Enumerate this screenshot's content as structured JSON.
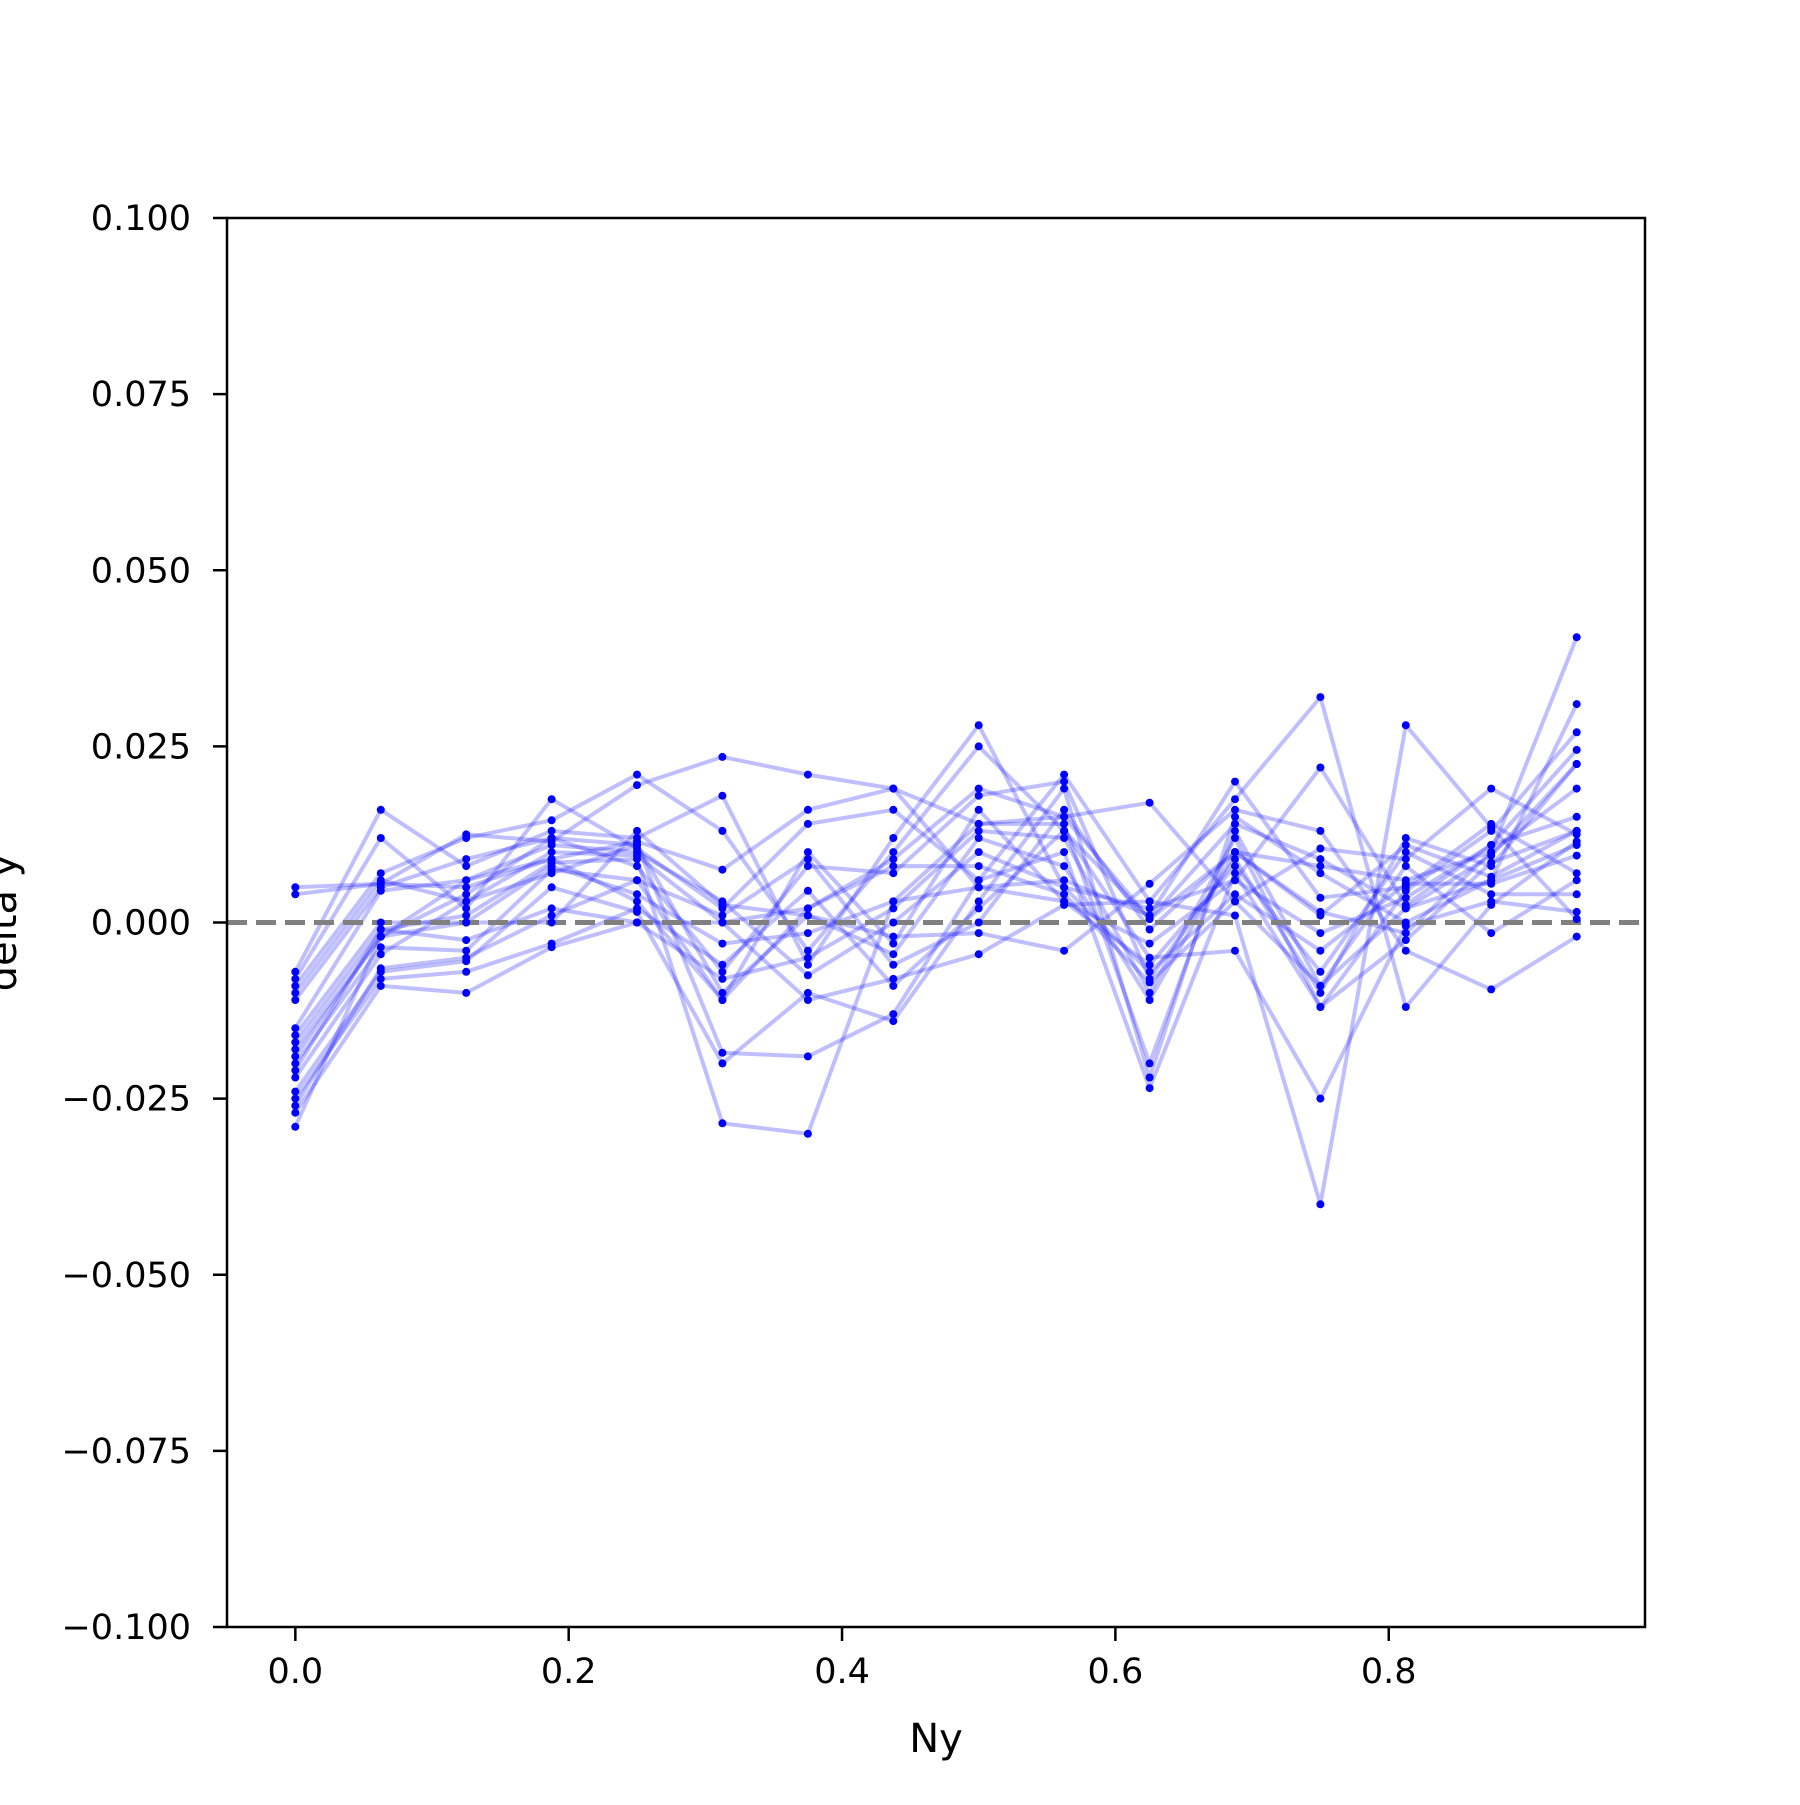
{
  "chart_data": {
    "type": "line",
    "title": "",
    "xlabel": "Ny",
    "ylabel": "delta y",
    "xlim": [
      -0.05,
      0.9875
    ],
    "ylim": [
      -0.1,
      0.1
    ],
    "xticks": [
      "0.0",
      "0.2",
      "0.4",
      "0.6",
      "0.8"
    ],
    "xtick_values": [
      0.0,
      0.2,
      0.4,
      0.6,
      0.8
    ],
    "yticks": [
      "0.100",
      "0.075",
      "0.050",
      "0.025",
      "0.000",
      "−0.025",
      "−0.050",
      "−0.075",
      "−0.100"
    ],
    "ytick_values": [
      0.1,
      0.075,
      0.05,
      0.025,
      0.0,
      -0.025,
      -0.05,
      -0.075,
      -0.1
    ],
    "reference_line": {
      "y": 0.0,
      "style": "dashed",
      "color": "#808080"
    },
    "grid": false,
    "line_color": "#0000ff",
    "line_alpha": 0.25,
    "marker_color": "#0000ff",
    "x": [
      0.0,
      0.0625,
      0.125,
      0.1875,
      0.25,
      0.3125,
      0.375,
      0.4375,
      0.5,
      0.5625,
      0.625,
      0.6875,
      0.75,
      0.8125,
      0.875,
      0.9375
    ],
    "series": [
      {
        "values": [
          0.005,
          0.0055,
          0.0125,
          0.0115,
          0.0195,
          0.0235,
          0.021,
          0.019,
          0.014,
          0.015,
          0.017,
          0.003,
          0.0105,
          0.009,
          0.019,
          0.0125
        ]
      },
      {
        "values": [
          0.004,
          0.0055,
          0.005,
          0.009,
          0.0115,
          0.0075,
          0.016,
          0.019,
          0.005,
          0.006,
          0.001,
          0.02,
          0.0035,
          0.005,
          0.014,
          0.007
        ]
      },
      {
        "values": [
          -0.007,
          0.016,
          0.008,
          0.013,
          0.012,
          0.018,
          -0.006,
          0.012,
          0.028,
          0.005,
          0.002,
          0.006,
          0.022,
          0.0025,
          0.011,
          0.015
        ]
      },
      {
        "values": [
          -0.008,
          0.012,
          0.002,
          0.0175,
          0.0105,
          0.002,
          0.014,
          0.016,
          0.006,
          0.021,
          0.003,
          0.0175,
          0.032,
          -0.012,
          0.0025,
          0.0115
        ]
      },
      {
        "values": [
          -0.009,
          0.007,
          0.012,
          0.0145,
          0.021,
          0.013,
          -0.004,
          0.01,
          0.025,
          0.013,
          0.0005,
          0.014,
          0.009,
          0.002,
          0.006,
          0.011
        ]
      },
      {
        "values": [
          -0.01,
          0.006,
          0.003,
          0.01,
          0.0095,
          0.0,
          0.002,
          0.009,
          0.019,
          0.015,
          0.0005,
          0.01,
          0.008,
          0.006,
          0.01,
          0.019
        ]
      },
      {
        "values": [
          -0.011,
          0.005,
          0.009,
          0.012,
          0.008,
          -0.007,
          0.008,
          0.007,
          0.018,
          0.02,
          -0.008,
          0.009,
          -0.01,
          0.012,
          0.008,
          0.0225
        ]
      },
      {
        "values": [
          -0.015,
          0.0045,
          0.006,
          0.009,
          0.003,
          -0.011,
          0.01,
          -0.003,
          0.016,
          0.003,
          -0.006,
          0.008,
          -0.007,
          0.01,
          0.004,
          0.004
        ]
      },
      {
        "values": [
          -0.016,
          0.0,
          0.0,
          0.008,
          0.004,
          -0.003,
          -0.0015,
          0.003,
          0.014,
          0.014,
          -0.02,
          0.013,
          -0.009,
          0.008,
          -0.0015,
          0.006
        ]
      },
      {
        "values": [
          -0.017,
          -0.001,
          -0.0025,
          0.002,
          0.0,
          -0.008,
          -0.005,
          0.002,
          0.013,
          0.012,
          -0.01,
          0.012,
          -0.012,
          0.0045,
          0.013,
          0.027
        ]
      },
      {
        "values": [
          -0.018,
          -0.002,
          0.004,
          0.012,
          0.011,
          -0.01,
          0.001,
          -0.0045,
          0.012,
          0.008,
          -0.011,
          0.01,
          0.001,
          0.011,
          0.0065,
          0.013
        ]
      },
      {
        "values": [
          -0.019,
          -0.002,
          0.006,
          0.011,
          0.01,
          0.003,
          -0.0075,
          0.0,
          0.01,
          0.005,
          -0.007,
          0.004,
          -0.004,
          0.0055,
          0.0055,
          0.0095
        ]
      },
      {
        "values": [
          -0.02,
          -0.0035,
          -0.004,
          0.0075,
          0.006,
          -0.011,
          0.002,
          0.008,
          0.008,
          0.004,
          -0.0085,
          0.003,
          -0.009,
          0.002,
          0.0095,
          0.0225
        ]
      },
      {
        "values": [
          -0.021,
          -0.001,
          0.001,
          0.0085,
          0.009,
          -0.0285,
          -0.03,
          0.003,
          0.005,
          0.003,
          -0.003,
          0.006,
          -0.0015,
          0.0035,
          0.011,
          0.0245
        ]
      },
      {
        "values": [
          -0.022,
          -0.0045,
          0.003,
          0.007,
          0.011,
          -0.0185,
          -0.019,
          -0.013,
          0.006,
          0.01,
          -0.0235,
          0.007,
          -0.012,
          -0.0025,
          0.0085,
          0.013
        ]
      },
      {
        "values": [
          -0.024,
          -0.007,
          -0.0055,
          0.005,
          0.0015,
          -0.02,
          -0.01,
          -0.014,
          0.003,
          0.019,
          -0.022,
          0.015,
          0.007,
          0.0,
          0.006,
          0.031
        ]
      },
      {
        "values": [
          -0.025,
          -0.008,
          -0.007,
          -0.003,
          0.002,
          -0.006,
          0.0045,
          -0.009,
          0.002,
          0.013,
          -0.005,
          -0.004,
          -0.025,
          -0.0005,
          0.003,
          0.0015
        ]
      },
      {
        "values": [
          -0.026,
          -0.0065,
          -0.005,
          0.001,
          0.006,
          0.001,
          0.009,
          -0.006,
          0.0,
          0.016,
          -0.001,
          0.01,
          0.0015,
          -0.0015,
          0.01,
          0.0405
        ]
      },
      {
        "values": [
          -0.027,
          -0.009,
          -0.01,
          -0.0035,
          0.0,
          0.0,
          -0.011,
          -0.008,
          -0.0045,
          0.0025,
          0.003,
          0.001,
          -0.04,
          0.028,
          0.0135,
          0.0005
        ]
      },
      {
        "values": [
          -0.029,
          -0.002,
          0.0,
          0.0,
          0.013,
          0.0025,
          0.001,
          -0.002,
          -0.0015,
          -0.004,
          0.0055,
          0.016,
          0.013,
          -0.004,
          -0.0095,
          -0.002
        ]
      }
    ]
  }
}
